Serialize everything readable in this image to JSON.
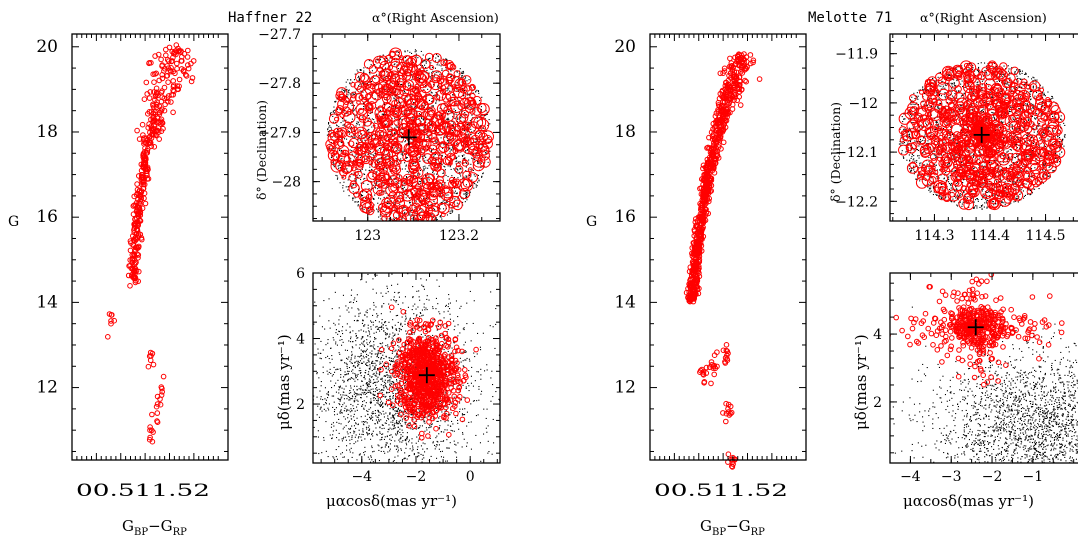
{
  "figures": [
    {
      "title": "Haffner 22",
      "subtitle": "α°(Right Ascension)",
      "cmd": {
        "ylabel": "G",
        "xlabel_main": "G",
        "xlabel_sub": "BP",
        "xlabel_mid": "−G",
        "xlabel_sub2": "RP",
        "xticklabels": "00.511.52",
        "xlim": [
          -0.5,
          2.7
        ],
        "ylim": [
          20.3,
          10.3
        ],
        "yticks": [
          12,
          14,
          16,
          18,
          20
        ]
      },
      "sky": {
        "ylabel": "δ° (Declination)",
        "xlim": [
          122.88,
          123.29
        ],
        "ylim": [
          -27.7,
          -28.08
        ],
        "xticks": [
          "123",
          "123.2"
        ],
        "xticks_values": [
          123.0,
          123.2
        ],
        "yticks": [
          "−28",
          "−27.9",
          "−27.8",
          "−27.7"
        ],
        "yticks_values": [
          -28.0,
          -27.9,
          -27.8,
          -27.7
        ],
        "center": [
          123.09,
          -27.91
        ],
        "radius": 0.18
      },
      "pm": {
        "xlabel": "μαcosδ(mas yr⁻¹)",
        "ylabel": "μδ(mas yr⁻¹)",
        "xlim": [
          -5.8,
          1.1
        ],
        "ylim": [
          0.2,
          6.0
        ],
        "xticks": [
          "−4",
          "−2",
          "0"
        ],
        "xticks_values": [
          -4,
          -2,
          0
        ],
        "yticks": [
          "2",
          "4",
          "6"
        ],
        "yticks_values": [
          2,
          4,
          6
        ],
        "center": [
          -1.6,
          2.88
        ]
      }
    },
    {
      "title": "Melotte 71",
      "subtitle": "α°(Right Ascension)",
      "cmd": {
        "ylabel": "G",
        "xlabel_main": "G",
        "xlabel_sub": "BP",
        "xlabel_mid": "−G",
        "xlabel_sub2": "RP",
        "xticklabels": "00.511.52",
        "xlim": [
          -0.5,
          2.7
        ],
        "ylim": [
          20.3,
          10.3
        ],
        "yticks": [
          12,
          14,
          16,
          18,
          20
        ]
      },
      "sky": {
        "ylabel": "δ° (Declination)",
        "xlim": [
          114.22,
          114.58
        ],
        "ylim": [
          -11.86,
          -12.24
        ],
        "xticks": [
          "114.3",
          "114.4",
          "114.5"
        ],
        "xticks_values": [
          114.3,
          114.4,
          114.5
        ],
        "yticks": [
          "−11.9",
          "−12",
          "−12.1",
          "−12.2"
        ],
        "yticks_values": [
          -11.9,
          -12.0,
          -12.1,
          -12.2
        ],
        "center": [
          114.385,
          -12.065
        ],
        "radius": 0.15
      },
      "pm": {
        "xlabel": "μαcosδ(mas yr⁻¹)",
        "ylabel": "μδ(mas yr⁻¹)",
        "xlim": [
          -4.5,
          0.4
        ],
        "ylim": [
          0.2,
          5.8
        ],
        "xticks": [
          "−4",
          "−3",
          "−2",
          "−1"
        ],
        "xticks_values": [
          -4,
          -3,
          -2,
          -1
        ],
        "yticks": [
          "2",
          "4"
        ],
        "yticks_values": [
          2,
          4
        ],
        "center": [
          -2.4,
          4.2
        ]
      }
    }
  ],
  "chart_data": [
    {
      "type": "scatter",
      "title": "Haffner 22",
      "panel": "color-magnitude diagram",
      "xlabel": "GBP−GRP",
      "ylabel": "G",
      "xlim": [
        -0.5,
        2.7
      ],
      "ylim": [
        20.3,
        10.3
      ],
      "series": [
        {
          "name": "",
          "points": [
            [
              0.75,
              14.5
            ],
            [
              0.78,
              15.0
            ],
            [
              0.8,
              15.5
            ],
            [
              0.85,
              16.0
            ],
            [
              0.9,
              16.5
            ],
            [
              0.97,
              17.0
            ],
            [
              1.05,
              17.5
            ],
            [
              1.15,
              18.0
            ],
            [
              1.25,
              18.5
            ],
            [
              1.4,
              19.0
            ],
            [
              1.55,
              19.5
            ],
            [
              1.7,
              20.0
            ],
            [
              1.1,
              11.0
            ],
            [
              1.25,
              11.4
            ],
            [
              1.35,
              11.9
            ],
            [
              1.15,
              12.8
            ],
            [
              0.3,
              13.5
            ]
          ]
        }
      ]
    },
    {
      "type": "scatter",
      "title": "Haffner 22",
      "panel": "sky positions",
      "xlabel": "α°(Right Ascension)",
      "ylabel": "δ° (Declination)",
      "xlim": [
        122.88,
        123.29
      ],
      "ylim": [
        -27.7,
        -28.08
      ],
      "cluster_center": [
        123.09,
        -27.91
      ]
    },
    {
      "type": "scatter",
      "title": "Haffner 22",
      "panel": "proper motions",
      "xlabel": "μαcosδ(mas yr⁻¹)",
      "ylabel": "μδ(mas yr⁻¹)",
      "xlim": [
        -5.8,
        1.1
      ],
      "ylim": [
        0.2,
        6.0
      ],
      "cluster_center": [
        -1.6,
        2.88
      ]
    },
    {
      "type": "scatter",
      "title": "Melotte 71",
      "panel": "color-magnitude diagram",
      "xlabel": "GBP−GRP",
      "ylabel": "G",
      "xlim": [
        -0.5,
        2.7
      ],
      "ylim": [
        20.3,
        10.3
      ],
      "series": [
        {
          "name": "",
          "points": [
            [
              0.35,
              14.0
            ],
            [
              0.45,
              15.0
            ],
            [
              0.55,
              16.0
            ],
            [
              0.7,
              17.0
            ],
            [
              0.9,
              18.0
            ],
            [
              1.15,
              19.0
            ],
            [
              1.4,
              19.8
            ],
            [
              0.6,
              12.3
            ],
            [
              0.8,
              12.5
            ],
            [
              1.05,
              12.7
            ],
            [
              1.1,
              11.5
            ],
            [
              1.2,
              10.3
            ]
          ]
        }
      ]
    },
    {
      "type": "scatter",
      "title": "Melotte 71",
      "panel": "sky positions",
      "xlabel": "α°(Right Ascension)",
      "ylabel": "δ° (Declination)",
      "xlim": [
        114.22,
        114.58
      ],
      "ylim": [
        -11.86,
        -12.24
      ],
      "cluster_center": [
        114.385,
        -12.065
      ]
    },
    {
      "type": "scatter",
      "title": "Melotte 71",
      "panel": "proper motions",
      "xlabel": "μαcosδ(mas yr⁻¹)",
      "ylabel": "μδ(mas yr⁻¹)",
      "xlim": [
        -4.5,
        0.4
      ],
      "ylim": [
        0.2,
        5.8
      ],
      "cluster_center": [
        -2.4,
        4.2
      ]
    }
  ]
}
